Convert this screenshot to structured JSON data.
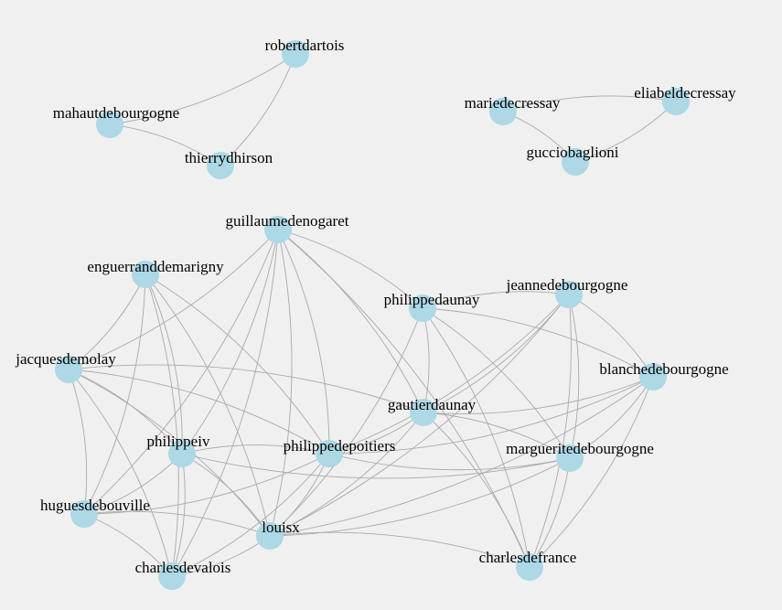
{
  "style": {
    "background": "#f0f0f0",
    "node_color": "#add8e6",
    "edge_color": "#a9a9a9",
    "label_color": "#000000"
  },
  "graph": {
    "type": "force-directed network",
    "nodes": [
      {
        "id": "robertdartois",
        "label": "robertdartois"
      },
      {
        "id": "mahautdebourgogne",
        "label": "mahautdebourgogne"
      },
      {
        "id": "thierrydhirson",
        "label": "thierrydhirson"
      },
      {
        "id": "mariedecressay",
        "label": "mariedecressay"
      },
      {
        "id": "eliabeldecressay",
        "label": "eliabeldecressay"
      },
      {
        "id": "gucciobaglioni",
        "label": "gucciobaglioni"
      },
      {
        "id": "guillaumedenogaret",
        "label": "guillaumedenogaret"
      },
      {
        "id": "enguerranddemarigny",
        "label": "enguerranddemarigny"
      },
      {
        "id": "philippedaunay",
        "label": "philippedaunay"
      },
      {
        "id": "jeannedebourgogne",
        "label": "jeannedebourgogne"
      },
      {
        "id": "jacquesdemolay",
        "label": "jacquesdemolay"
      },
      {
        "id": "blanchedebourgogne",
        "label": "blanchedebourgogne"
      },
      {
        "id": "gautierdaunay",
        "label": "gautierdaunay"
      },
      {
        "id": "philippeiv",
        "label": "philippeiv"
      },
      {
        "id": "philippedepoitiers",
        "label": "philippedepoitiers"
      },
      {
        "id": "margueritedebourgogne",
        "label": "margueritedebourgogne"
      },
      {
        "id": "huguesdebouville",
        "label": "huguesdebouville"
      },
      {
        "id": "louisx",
        "label": "louisx"
      },
      {
        "id": "charlesdevalois",
        "label": "charlesdevalois"
      },
      {
        "id": "charlesdefrance",
        "label": "charlesdefrance"
      }
    ],
    "edges": [
      [
        "robertdartois",
        "mahautdebourgogne"
      ],
      [
        "robertdartois",
        "thierrydhirson"
      ],
      [
        "mahautdebourgogne",
        "thierrydhirson"
      ],
      [
        "mariedecressay",
        "eliabeldecressay"
      ],
      [
        "mariedecressay",
        "gucciobaglioni"
      ],
      [
        "eliabeldecressay",
        "gucciobaglioni"
      ],
      [
        "guillaumedenogaret",
        "philippedaunay"
      ],
      [
        "guillaumedenogaret",
        "jacquesdemolay"
      ],
      [
        "guillaumedenogaret",
        "philippeiv"
      ],
      [
        "guillaumedenogaret",
        "philippedepoitiers"
      ],
      [
        "guillaumedenogaret",
        "gautierdaunay"
      ],
      [
        "guillaumedenogaret",
        "huguesdebouville"
      ],
      [
        "guillaumedenogaret",
        "louisx"
      ],
      [
        "guillaumedenogaret",
        "charlesdevalois"
      ],
      [
        "guillaumedenogaret",
        "charlesdefrance"
      ],
      [
        "enguerranddemarigny",
        "jacquesdemolay"
      ],
      [
        "enguerranddemarigny",
        "philippeiv"
      ],
      [
        "enguerranddemarigny",
        "huguesdebouville"
      ],
      [
        "enguerranddemarigny",
        "louisx"
      ],
      [
        "enguerranddemarigny",
        "charlesdevalois"
      ],
      [
        "enguerranddemarigny",
        "philippedepoitiers"
      ],
      [
        "philippedaunay",
        "gautierdaunay"
      ],
      [
        "philippedaunay",
        "jeannedebourgogne"
      ],
      [
        "philippedaunay",
        "blanchedebourgogne"
      ],
      [
        "philippedaunay",
        "margueritedebourgogne"
      ],
      [
        "philippedaunay",
        "louisx"
      ],
      [
        "philippedaunay",
        "charlesdefrance"
      ],
      [
        "jeannedebourgogne",
        "gautierdaunay"
      ],
      [
        "jeannedebourgogne",
        "philippedepoitiers"
      ],
      [
        "jeannedebourgogne",
        "margueritedebourgogne"
      ],
      [
        "jeannedebourgogne",
        "blanchedebourgogne"
      ],
      [
        "jeannedebourgogne",
        "louisx"
      ],
      [
        "jeannedebourgogne",
        "charlesdefrance"
      ],
      [
        "blanchedebourgogne",
        "gautierdaunay"
      ],
      [
        "blanchedebourgogne",
        "margueritedebourgogne"
      ],
      [
        "blanchedebourgogne",
        "charlesdefrance"
      ],
      [
        "blanchedebourgogne",
        "louisx"
      ],
      [
        "blanchedebourgogne",
        "philippedepoitiers"
      ],
      [
        "gautierdaunay",
        "margueritedebourgogne"
      ],
      [
        "gautierdaunay",
        "charlesdefrance"
      ],
      [
        "gautierdaunay",
        "philippedepoitiers"
      ],
      [
        "gautierdaunay",
        "louisx"
      ],
      [
        "margueritedebourgogne",
        "charlesdefrance"
      ],
      [
        "margueritedebourgogne",
        "louisx"
      ],
      [
        "margueritedebourgogne",
        "philippedepoitiers"
      ],
      [
        "margueritedebourgogne",
        "philippeiv"
      ],
      [
        "jacquesdemolay",
        "philippeiv"
      ],
      [
        "jacquesdemolay",
        "huguesdebouville"
      ],
      [
        "jacquesdemolay",
        "louisx"
      ],
      [
        "jacquesdemolay",
        "charlesdevalois"
      ],
      [
        "jacquesdemolay",
        "philippedepoitiers"
      ],
      [
        "jacquesdemolay",
        "gautierdaunay"
      ],
      [
        "philippeiv",
        "huguesdebouville"
      ],
      [
        "philippeiv",
        "louisx"
      ],
      [
        "philippeiv",
        "charlesdevalois"
      ],
      [
        "philippeiv",
        "philippedepoitiers"
      ],
      [
        "philippedepoitiers",
        "louisx"
      ],
      [
        "philippedepoitiers",
        "huguesdebouville"
      ],
      [
        "philippedepoitiers",
        "charlesdevalois"
      ],
      [
        "huguesdebouville",
        "louisx"
      ],
      [
        "huguesdebouville",
        "charlesdevalois"
      ],
      [
        "louisx",
        "charlesdevalois"
      ],
      [
        "louisx",
        "charlesdefrance"
      ]
    ]
  }
}
